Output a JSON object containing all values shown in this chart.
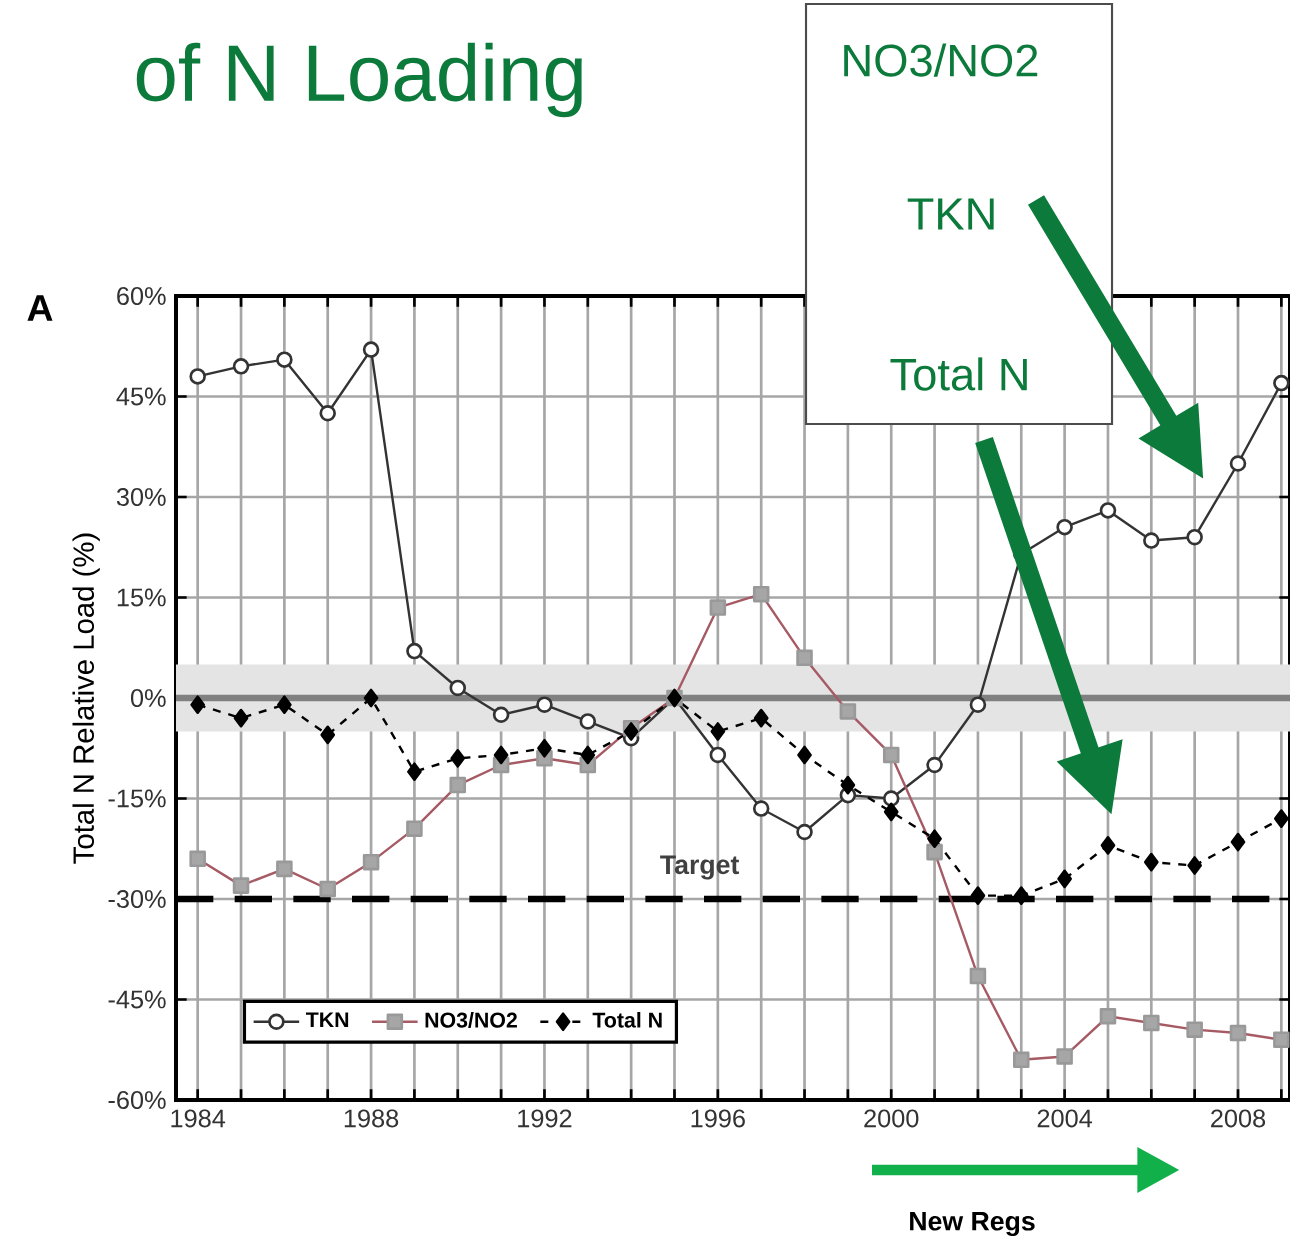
{
  "chart_data": {
    "type": "line",
    "title": "of N Loading",
    "ylabel": "Total N Relative Load (%)",
    "annotations": [
      "A",
      "NO3/NO2",
      "TKN",
      "Total N",
      "New Regs"
    ],
    "x": [
      1984,
      1985,
      1986,
      1987,
      1988,
      1989,
      1990,
      1991,
      1992,
      1993,
      1994,
      1995,
      1996,
      1997,
      1998,
      1999,
      2000,
      2001,
      2002,
      2003,
      2004,
      2005,
      2006,
      2007,
      2008,
      2009
    ],
    "series": [
      {
        "name": "TKN",
        "color": "#333333",
        "marker": "circle",
        "line_style": "solid",
        "values": [
          48,
          49.5,
          50.5,
          42.5,
          52,
          7,
          1.5,
          -2.5,
          -1,
          -3.5,
          -6,
          0,
          -8.5,
          -16.5,
          -20,
          -14.5,
          -15,
          -10,
          -1,
          21.5,
          25.5,
          28,
          23.5,
          24,
          35,
          47
        ]
      },
      {
        "name": "NO3/NO2",
        "color": "#a65a64",
        "marker": "square",
        "line_style": "solid",
        "values": [
          -24,
          -28,
          -25.5,
          -28.5,
          -24.5,
          -19.5,
          -13,
          -10,
          -9,
          -10,
          -4.5,
          0,
          13.5,
          15.5,
          6,
          -2,
          -8.5,
          -23,
          -41.5,
          -54,
          -53.5,
          -47.5,
          -48.5,
          -49.5,
          -50,
          -51
        ]
      },
      {
        "name": "Total N",
        "color": "#000000",
        "marker": "diamond",
        "line_style": "dashed",
        "values": [
          -1,
          -3,
          -1,
          -5.5,
          0,
          -11,
          -9,
          -8.5,
          -7.5,
          -8.5,
          -5,
          0,
          -5,
          -3,
          -8.5,
          -13,
          -17,
          -21,
          -29.5,
          -29.5,
          -27,
          -22,
          -24.5,
          -25,
          -21.5,
          -18
        ]
      }
    ],
    "xlim": [
      1983.5,
      2009.2
    ],
    "ylim": [
      -60,
      60
    ],
    "xticks": [
      1984,
      {
        "value": 1985,
        "label": null
      },
      {
        "value": 1986,
        "label": null
      },
      {
        "value": 1987,
        "label": null
      },
      1988,
      {
        "value": 1989,
        "label": null
      },
      {
        "value": 1990,
        "label": null
      },
      {
        "value": 1991,
        "label": null
      },
      1992,
      {
        "value": 1993,
        "label": null
      },
      {
        "value": 1994,
        "label": null
      },
      {
        "value": 1995,
        "label": null
      },
      1996,
      {
        "value": 1997,
        "label": null
      },
      {
        "value": 1998,
        "label": null
      },
      {
        "value": 1999,
        "label": null
      },
      2000,
      {
        "value": 2001,
        "label": null
      },
      {
        "value": 2002,
        "label": null
      },
      {
        "value": 2003,
        "label": null
      },
      2004,
      {
        "value": 2005,
        "label": null
      },
      {
        "value": 2006,
        "label": null
      },
      {
        "value": 2007,
        "label": null
      },
      2008,
      {
        "value": 2009,
        "label": null
      }
    ],
    "yticks": [
      {
        "value": -60,
        "label": "-60%"
      },
      {
        "value": -45,
        "label": "-45%"
      },
      {
        "value": -30,
        "label": "-30%"
      },
      {
        "value": -15,
        "label": "-15%"
      },
      {
        "value": 0,
        "label": "0%"
      },
      {
        "value": 15,
        "label": "15%"
      },
      {
        "value": 30,
        "label": "30%"
      },
      {
        "value": 45,
        "label": "45%"
      },
      {
        "value": 60,
        "label": "60%"
      }
    ],
    "ref_lines": [
      {
        "axis": "y",
        "value": 0,
        "label": null,
        "color": "#808080",
        "line_style": "solid"
      },
      {
        "axis": "y",
        "value": -30,
        "label": "Target",
        "color": "#000000",
        "line_style": "dashed"
      }
    ],
    "bands": [
      {
        "axis": "y",
        "from": -5,
        "to": 5,
        "label": null,
        "color": "#e4e4e4"
      }
    ],
    "grid": true,
    "legend": "bottom left"
  }
}
